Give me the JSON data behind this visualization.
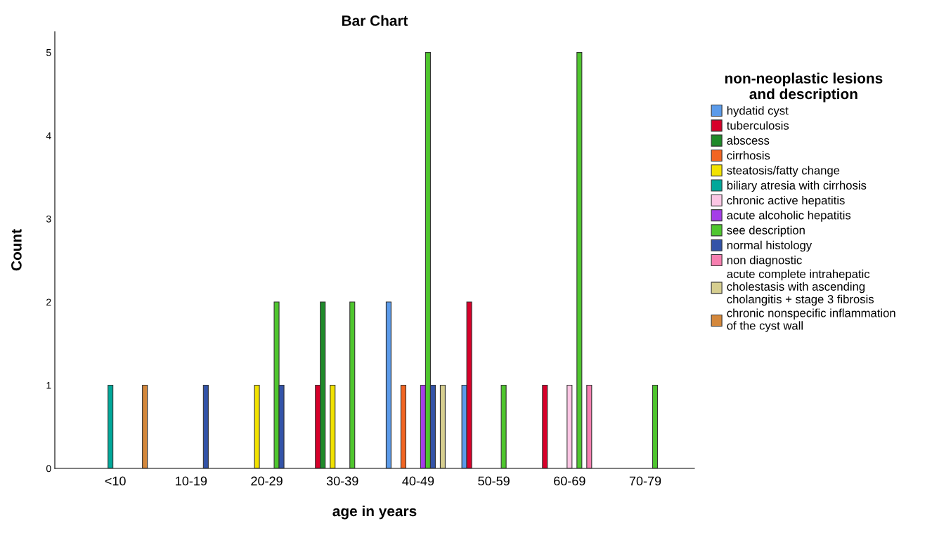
{
  "chart_data": {
    "type": "bar",
    "title": "Bar Chart",
    "xlabel": "age in years",
    "ylabel": "Count",
    "legend_title": "non-neoplastic lesions\nand description",
    "categories": [
      "<10",
      "10-19",
      "20-29",
      "30-39",
      "40-49",
      "50-59",
      "60-69",
      "70-79"
    ],
    "ylim": [
      0,
      5.25
    ],
    "yticks": [
      0,
      1,
      2,
      3,
      4,
      5
    ],
    "grid": false,
    "legend": "right",
    "series": [
      {
        "name": "hydatid cyst",
        "color": "#5b9bea",
        "values": [
          null,
          null,
          null,
          null,
          2,
          1,
          null,
          null
        ]
      },
      {
        "name": "tuberculosis",
        "color": "#d7002a",
        "values": [
          null,
          null,
          null,
          1,
          null,
          2,
          1,
          null
        ]
      },
      {
        "name": "abscess",
        "color": "#1f8a2a",
        "values": [
          null,
          null,
          null,
          2,
          null,
          null,
          null,
          null
        ]
      },
      {
        "name": "cirrhosis",
        "color": "#f26522",
        "values": [
          null,
          null,
          null,
          null,
          1,
          null,
          null,
          null
        ]
      },
      {
        "name": "steatosis/fatty change",
        "color": "#f2e200",
        "values": [
          null,
          null,
          1,
          1,
          null,
          null,
          null,
          null
        ]
      },
      {
        "name": "biliary atresia with cirrhosis",
        "color": "#00a89a",
        "values": [
          1,
          null,
          null,
          null,
          null,
          null,
          null,
          null
        ]
      },
      {
        "name": "chronic active hepatitis",
        "color": "#fcc6e4",
        "values": [
          null,
          null,
          null,
          null,
          null,
          null,
          1,
          null
        ]
      },
      {
        "name": "acute alcoholic hepatitis",
        "color": "#a53ee8",
        "values": [
          null,
          null,
          null,
          null,
          1,
          null,
          null,
          null
        ]
      },
      {
        "name": "see description",
        "color": "#4fc62e",
        "values": [
          null,
          null,
          2,
          2,
          5,
          1,
          5,
          1
        ]
      },
      {
        "name": "normal histology",
        "color": "#3353a8",
        "values": [
          null,
          1,
          1,
          null,
          1,
          null,
          null,
          null
        ]
      },
      {
        "name": "non diagnostic",
        "color": "#f77fb0",
        "values": [
          null,
          null,
          null,
          null,
          null,
          null,
          1,
          null
        ]
      },
      {
        "name": "acute complete intrahepatic\ncholestasis with ascending\ncholangitis + stage 3 fibrosis",
        "color": "#d6ce8f",
        "values": [
          null,
          null,
          null,
          null,
          1,
          null,
          null,
          null
        ]
      },
      {
        "name": "chronic nonspecific inflammation\nof the cyst wall",
        "color": "#d4883c",
        "values": [
          1,
          null,
          null,
          null,
          null,
          null,
          null,
          null
        ]
      }
    ]
  }
}
